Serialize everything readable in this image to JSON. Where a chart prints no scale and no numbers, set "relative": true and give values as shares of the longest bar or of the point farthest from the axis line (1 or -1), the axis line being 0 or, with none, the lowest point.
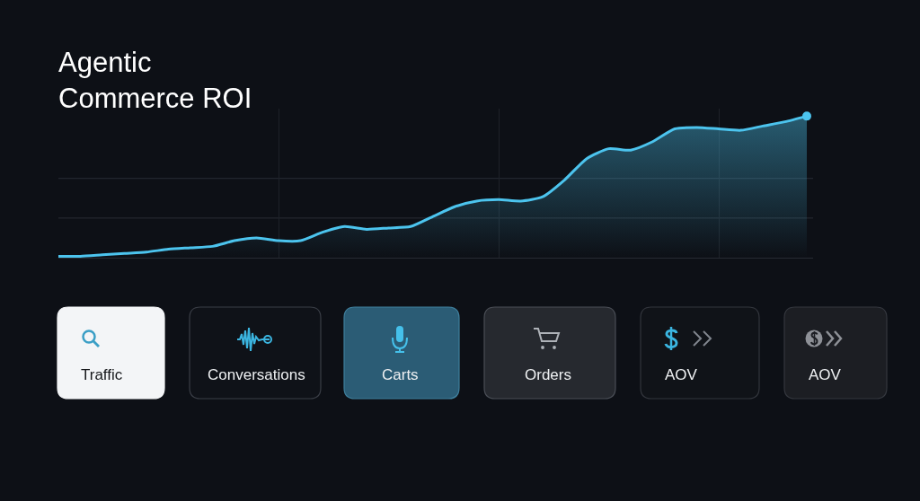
{
  "chart_data": {
    "type": "area",
    "title": "Agentic Commerce ROI",
    "relative": true,
    "grid": "x",
    "categories": [
      null,
      null,
      null,
      null,
      null,
      null,
      null,
      null,
      null,
      null,
      null,
      null,
      null,
      null,
      null,
      null,
      null,
      null,
      null,
      null,
      null,
      null,
      null,
      null,
      null,
      null,
      null,
      null,
      null,
      null,
      null,
      null,
      null,
      null,
      null
    ],
    "series": [
      {
        "color": "#4cc4ee",
        "marker": "none",
        "values": [
          0.01,
          0.01,
          0.02,
          0.03,
          0.04,
          0.06,
          0.07,
          0.08,
          0.12,
          0.14,
          0.12,
          0.12,
          0.18,
          0.22,
          0.2,
          0.21,
          0.22,
          0.29,
          0.36,
          0.4,
          0.41,
          0.4,
          0.43,
          0.55,
          0.7,
          0.77,
          0.76,
          0.82,
          0.91,
          0.92,
          0.91,
          0.9,
          0.93,
          0.96,
          1
        ]
      },
      {
        "type": "line",
        "color": "#4cc4ee",
        "marker": "circle",
        "values": [
          null,
          null,
          null,
          null,
          null,
          null,
          null,
          null,
          null,
          null,
          null,
          null,
          null,
          null,
          null,
          null,
          null,
          null,
          null,
          null,
          null,
          null,
          null,
          null,
          null,
          null,
          null,
          null,
          null,
          null,
          null,
          null,
          null,
          null,
          1
        ]
      }
    ],
    "ref_lines": [
      {
        "axis": "y",
        "value": 0.28,
        "color": "#2a2e36"
      },
      {
        "axis": "y",
        "value": 0.56,
        "color": "#2a2e36"
      }
    ],
    "annotations": [
      "Traffic",
      "Conversations",
      "Carts",
      "Orders",
      "AOV",
      "AOV"
    ]
  }
}
